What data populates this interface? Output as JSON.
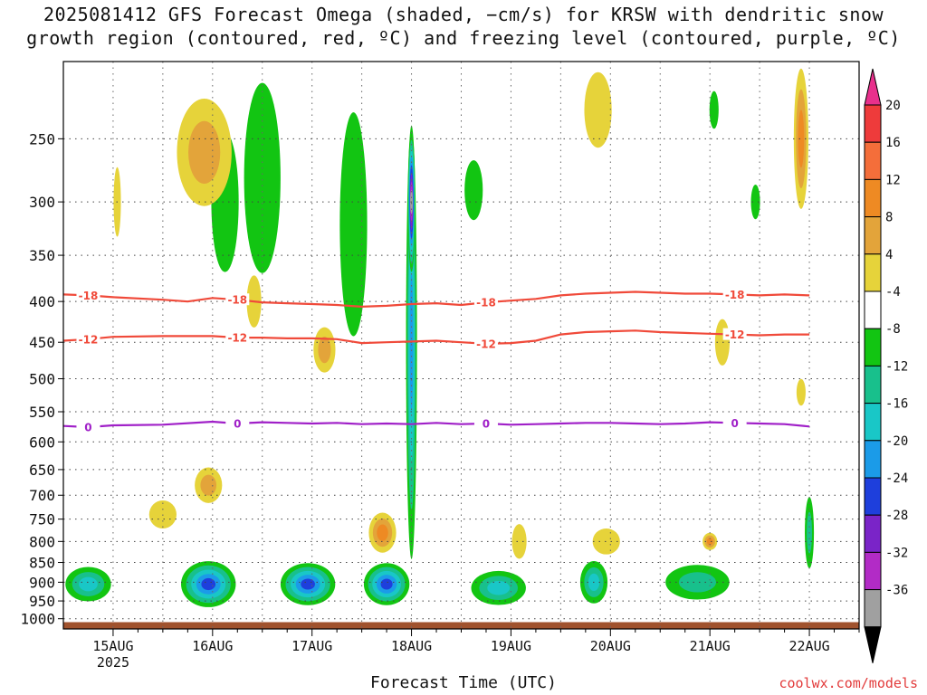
{
  "title": {
    "line1": "2025081412 GFS Forecast Omega (shaded, −cm/s) for KRSW with dendritic snow",
    "line2": "growth region (contoured, red, ºC) and freezing level (contoured, purple, ºC)"
  },
  "credit": "coolwx.com/models",
  "chart_data": {
    "type": "heatmap",
    "xlabel": "Forecast Time (UTC)",
    "ylabel": "",
    "x_range_hours": [
      -12,
      180
    ],
    "x_ticks": [
      {
        "hour": 0,
        "label": "15AUG",
        "sublabel": "2025"
      },
      {
        "hour": 24,
        "label": "16AUG"
      },
      {
        "hour": 48,
        "label": "17AUG"
      },
      {
        "hour": 72,
        "label": "18AUG"
      },
      {
        "hour": 96,
        "label": "19AUG"
      },
      {
        "hour": 120,
        "label": "20AUG"
      },
      {
        "hour": 144,
        "label": "21AUG"
      },
      {
        "hour": 168,
        "label": "22AUG"
      }
    ],
    "y_axis_scale": "log-pressure",
    "y_range_hpa": [
      1030,
      200
    ],
    "y_ticks": [
      250,
      300,
      350,
      400,
      450,
      500,
      550,
      600,
      650,
      700,
      750,
      800,
      850,
      900,
      950,
      1000
    ],
    "grid": true,
    "colorbar": {
      "tick_labels": [
        "20",
        "16",
        "12",
        "8",
        "4",
        "-4",
        "-8",
        "-12",
        "-16",
        "-20",
        "-24",
        "-28",
        "-32",
        "-36"
      ],
      "colors": [
        "#e8308c",
        "#ee3b3b",
        "#f46e3a",
        "#ee8a23",
        "#e3a43a",
        "#e6d33a",
        "#ffffff",
        "#12c512",
        "#18c08c",
        "#19c7c7",
        "#1b9be8",
        "#1e3fdc",
        "#7a24c8",
        "#b22bc6",
        "#a0a0a0",
        "#000000"
      ]
    },
    "contours": [
      {
        "name": "dendritic -18C",
        "color": "#f04a3a",
        "labels": [
          "-18",
          "-18",
          "-18",
          "-18"
        ],
        "points": [
          [
            -12,
            392
          ],
          [
            -6,
            393
          ],
          [
            0,
            395
          ],
          [
            12,
            398
          ],
          [
            18,
            400
          ],
          [
            24,
            396
          ],
          [
            30,
            398
          ],
          [
            36,
            401
          ],
          [
            42,
            402
          ],
          [
            48,
            403
          ],
          [
            54,
            404
          ],
          [
            60,
            406
          ],
          [
            66,
            405
          ],
          [
            72,
            403
          ],
          [
            78,
            402
          ],
          [
            84,
            404
          ],
          [
            90,
            401
          ],
          [
            96,
            399
          ],
          [
            102,
            397
          ],
          [
            108,
            393
          ],
          [
            114,
            391
          ],
          [
            120,
            390
          ],
          [
            126,
            389
          ],
          [
            132,
            390
          ],
          [
            138,
            391
          ],
          [
            144,
            391
          ],
          [
            150,
            392
          ],
          [
            156,
            393
          ],
          [
            162,
            392
          ],
          [
            168,
            393
          ]
        ]
      },
      {
        "name": "dendritic -12C",
        "color": "#f04a3a",
        "labels": [
          "-12",
          "-12",
          "-12",
          "-12"
        ],
        "points": [
          [
            -12,
            448
          ],
          [
            -6,
            446
          ],
          [
            0,
            443
          ],
          [
            12,
            442
          ],
          [
            24,
            442
          ],
          [
            30,
            444
          ],
          [
            36,
            444
          ],
          [
            42,
            445
          ],
          [
            48,
            445
          ],
          [
            54,
            446
          ],
          [
            60,
            451
          ],
          [
            66,
            450
          ],
          [
            72,
            449
          ],
          [
            78,
            448
          ],
          [
            84,
            450
          ],
          [
            90,
            452
          ],
          [
            96,
            451
          ],
          [
            102,
            448
          ],
          [
            108,
            440
          ],
          [
            114,
            437
          ],
          [
            120,
            436
          ],
          [
            126,
            435
          ],
          [
            132,
            437
          ],
          [
            138,
            438
          ],
          [
            144,
            439
          ],
          [
            150,
            440
          ],
          [
            156,
            441
          ],
          [
            162,
            440
          ],
          [
            168,
            440
          ]
        ]
      },
      {
        "name": "freezing level 0C",
        "color": "#a020c8",
        "labels": [
          "0",
          "0",
          "0",
          "0"
        ],
        "points": [
          [
            -12,
            573
          ],
          [
            -6,
            575
          ],
          [
            0,
            572
          ],
          [
            12,
            571
          ],
          [
            24,
            566
          ],
          [
            30,
            569
          ],
          [
            36,
            567
          ],
          [
            42,
            568
          ],
          [
            48,
            569
          ],
          [
            54,
            568
          ],
          [
            60,
            570
          ],
          [
            66,
            569
          ],
          [
            72,
            570
          ],
          [
            78,
            568
          ],
          [
            84,
            570
          ],
          [
            90,
            569
          ],
          [
            96,
            571
          ],
          [
            102,
            570
          ],
          [
            108,
            569
          ],
          [
            114,
            568
          ],
          [
            120,
            568
          ],
          [
            126,
            569
          ],
          [
            132,
            570
          ],
          [
            138,
            569
          ],
          [
            144,
            567
          ],
          [
            150,
            568
          ],
          [
            156,
            569
          ],
          [
            162,
            570
          ],
          [
            168,
            574
          ]
        ]
      }
    ],
    "omega_cells": [
      {
        "hour": -6,
        "p": 905,
        "hw": 2.5,
        "hp": 90,
        "level": -16
      },
      {
        "hour": 23,
        "p": 905,
        "hw": 3,
        "hp": 120,
        "level": -24
      },
      {
        "hour": 47,
        "p": 905,
        "hw": 3,
        "hp": 110,
        "level": -24
      },
      {
        "hour": 66,
        "p": 905,
        "hw": 2.5,
        "hp": 110,
        "level": -24
      },
      {
        "hour": 93,
        "p": 915,
        "hw": 3,
        "hp": 90,
        "level": -16
      },
      {
        "hour": 116,
        "p": 900,
        "hw": 1.5,
        "hp": 110,
        "level": -16
      },
      {
        "hour": 141,
        "p": 900,
        "hw": 3.5,
        "hp": 90,
        "level": -12
      },
      {
        "hour": 72,
        "p": 450,
        "hw": 0.6,
        "hp": 500,
        "level": -20
      },
      {
        "hour": 72,
        "p": 300,
        "hw": 0.4,
        "hp": 120,
        "level": -36
      },
      {
        "hour": 168,
        "p": 780,
        "hw": 0.5,
        "hp": 160,
        "level": -12
      },
      {
        "hour": 27,
        "p": 300,
        "hw": 1.5,
        "hp": 120,
        "level": -8
      },
      {
        "hour": 36,
        "p": 280,
        "hw": 2,
        "hp": 150,
        "level": -8
      },
      {
        "hour": 58,
        "p": 320,
        "hw": 1.5,
        "hp": 200,
        "level": -8
      },
      {
        "hour": 87,
        "p": 290,
        "hw": 1,
        "hp": 50,
        "level": -8
      },
      {
        "hour": 155,
        "p": 300,
        "hw": 0.5,
        "hp": 30,
        "level": -8
      },
      {
        "hour": 145,
        "p": 230,
        "hw": 0.5,
        "hp": 25,
        "level": -8
      },
      {
        "hour": 12,
        "p": 740,
        "hw": 1.5,
        "hp": 60,
        "level": 4
      },
      {
        "hour": 23,
        "p": 680,
        "hw": 1.5,
        "hp": 70,
        "level": 8
      },
      {
        "hour": 22,
        "p": 260,
        "hw": 3,
        "hp": 80,
        "level": 8
      },
      {
        "hour": 51,
        "p": 460,
        "hw": 1.2,
        "hp": 60,
        "level": 8
      },
      {
        "hour": 65,
        "p": 780,
        "hw": 1.5,
        "hp": 90,
        "level": 12
      },
      {
        "hour": 119,
        "p": 800,
        "hw": 1.5,
        "hp": 60,
        "level": 4
      },
      {
        "hour": 144,
        "p": 800,
        "hw": 0.8,
        "hp": 40,
        "level": 12
      },
      {
        "hour": 147,
        "p": 450,
        "hw": 0.8,
        "hp": 60,
        "level": 4
      },
      {
        "hour": 98,
        "p": 800,
        "hw": 0.8,
        "hp": 80,
        "level": 4
      },
      {
        "hour": 117,
        "p": 230,
        "hw": 1.5,
        "hp": 50,
        "level": 4
      },
      {
        "hour": 34,
        "p": 400,
        "hw": 0.8,
        "hp": 60,
        "level": 4
      },
      {
        "hour": 1,
        "p": 300,
        "hw": 0.4,
        "hp": 60,
        "level": 4
      },
      {
        "hour": 166,
        "p": 250,
        "hw": 0.8,
        "hp": 100,
        "level": 12
      },
      {
        "hour": 166,
        "p": 520,
        "hw": 0.5,
        "hp": 40,
        "level": 4
      }
    ],
    "surface_fill_below_hpa": 1010
  }
}
